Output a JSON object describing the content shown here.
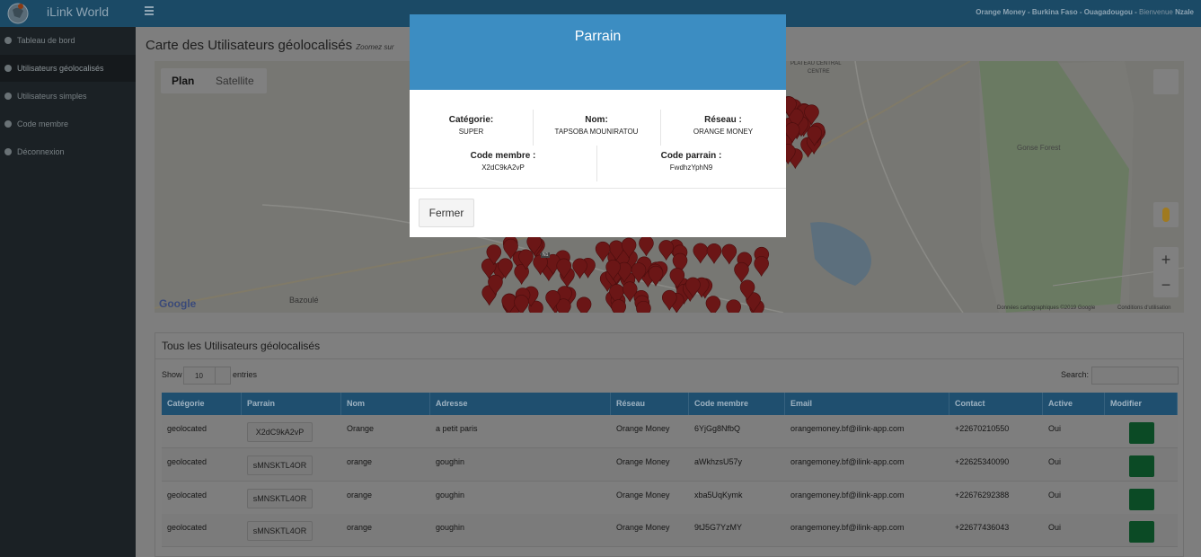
{
  "header": {
    "brand": "iLink World",
    "location": "Orange Money - Burkina Faso - Ouagadougou -",
    "welcome": "Bienvenue",
    "user": "Nzale"
  },
  "sidebar": {
    "items": [
      "Tableau de bord",
      "Utilisateurs géolocalisés",
      "Utilisateurs simples",
      "Code membre",
      "Déconnexion"
    ]
  },
  "page": {
    "title": "Carte des Utilisateurs géolocalisés",
    "subtitle": "Zoomez sur"
  },
  "map": {
    "buttons": [
      "Plan",
      "Satellite"
    ],
    "places": [
      "Gonse Forest",
      "Bazoulé",
      "PLATEAU CENTRAL",
      "CENTRE",
      "N1"
    ],
    "logo": "Google",
    "attribution": "Données cartographiques ©2019 Google",
    "terms": "Conditions d'utilisation"
  },
  "table": {
    "title": "Tous les Utilisateurs géolocalisés",
    "show": "Show",
    "length": "10",
    "entries": "entries",
    "search": "Search:",
    "columns": [
      "Catégorie",
      "Parrain",
      "Nom",
      "Adresse",
      "Réseau",
      "Code membre",
      "Email",
      "Contact",
      "Active",
      "Modifier"
    ],
    "rows": [
      [
        "geolocated",
        "X2dC9kA2vP",
        "Orange",
        "a petit paris",
        "Orange Money",
        "6YjGg8NfbQ",
        "orangemoney.bf@ilink-app.com",
        "+22670210550",
        "Oui"
      ],
      [
        "geolocated",
        "sMNSKTL4OR",
        "orange",
        "goughin",
        "Orange Money",
        "aWkhzsU57y",
        "orangemoney.bf@ilink-app.com",
        "+22625340090",
        "Oui"
      ],
      [
        "geolocated",
        "sMNSKTL4OR",
        "orange",
        "goughin",
        "Orange Money",
        "xba5UqKymk",
        "orangemoney.bf@ilink-app.com",
        "+22676292388",
        "Oui"
      ],
      [
        "geolocated",
        "sMNSKTL4OR",
        "orange",
        "goughin",
        "Orange Money",
        "9tJ5G7YzMY",
        "orangemoney.bf@ilink-app.com",
        "+22677436043",
        "Oui"
      ]
    ]
  },
  "modal": {
    "title": "Parrain",
    "fields": [
      {
        "label": "Catégorie:",
        "value": "SUPER"
      },
      {
        "label": "Nom:",
        "value": "TAPSOBA MOUNIRATOU"
      },
      {
        "label": "Réseau :",
        "value": "ORANGE MONEY"
      },
      {
        "label": "Code membre :",
        "value": "X2dC9kA2vP"
      },
      {
        "label": "Code parrain :",
        "value": "FwdhzYphN9"
      }
    ],
    "close": "Fermer"
  }
}
